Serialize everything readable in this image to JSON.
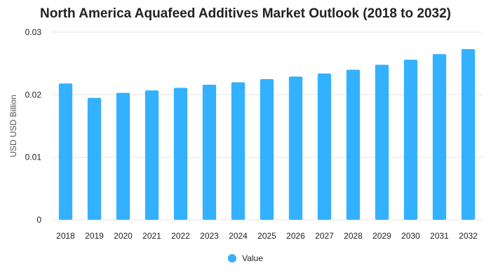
{
  "chart_data": {
    "type": "bar",
    "title": "North America Aquafeed Additives Market Outlook (2018 to 2032)",
    "xlabel": "",
    "ylabel": "USD USD Billion",
    "ylim": [
      0,
      0.03
    ],
    "yticks": [
      "0",
      "0.01",
      "0.02",
      "0.03"
    ],
    "yticks_values": [
      0,
      0.01,
      0.02,
      0.03
    ],
    "grid": true,
    "legend_position": "bottom",
    "categories": [
      "2018",
      "2019",
      "2020",
      "2021",
      "2022",
      "2023",
      "2024",
      "2025",
      "2026",
      "2027",
      "2028",
      "2029",
      "2030",
      "2031",
      "2032"
    ],
    "series": [
      {
        "name": "Value",
        "color": "#33b1ff",
        "values": [
          0.0218,
          0.0195,
          0.0203,
          0.0207,
          0.0211,
          0.0216,
          0.022,
          0.0225,
          0.0229,
          0.0234,
          0.024,
          0.0248,
          0.0256,
          0.0265,
          0.0273
        ]
      }
    ]
  }
}
